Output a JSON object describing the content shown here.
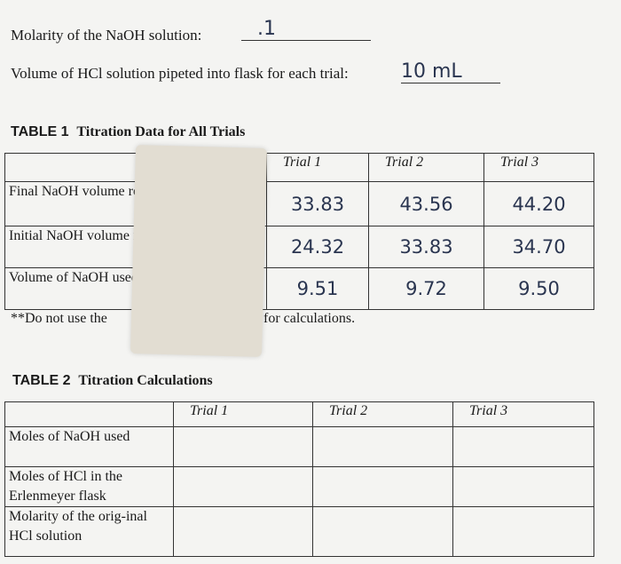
{
  "header": {
    "molarity_label": "Molarity of the NaOH solution:",
    "molarity_value": ".1",
    "volume_label": "Volume of HCl solution pipeted into flask for each trial:",
    "volume_value": "10 mL"
  },
  "table1": {
    "title": "TABLE 1",
    "subtitle": "Titration Data for All Trials",
    "columns": [
      "Trial 1",
      "Trial 2",
      "Trial 3"
    ],
    "rows": [
      {
        "label": "Final NaOH volume reading",
        "values": [
          "33.83",
          "43.56",
          "44.20"
        ]
      },
      {
        "label": "Initial NaOH volume reading",
        "values": [
          "24.32",
          "33.83",
          "34.70"
        ]
      },
      {
        "label": "Volume of NaOH used",
        "values": [
          "9.51",
          "9.72",
          "9.50"
        ]
      }
    ],
    "note_start": "**Do not use the",
    "note_end": "for calculations."
  },
  "table2": {
    "title": "TABLE 2",
    "subtitle": "Titration Calculations",
    "columns": [
      "Trial 1",
      "Trial 2",
      "Trial 3"
    ],
    "rows": [
      {
        "label": "Moles of NaOH used"
      },
      {
        "label": "Moles of HCl in the Erlenmeyer flask"
      },
      {
        "label": "Molarity of the orig-inal HCl solution"
      }
    ]
  }
}
